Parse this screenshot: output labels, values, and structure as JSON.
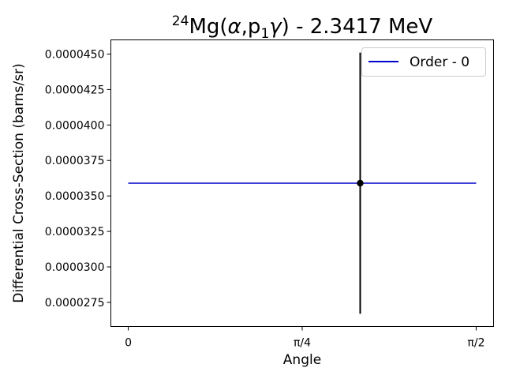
{
  "chart_data": {
    "type": "scatter",
    "title": {
      "mass_number": "24",
      "element": "Mg",
      "reaction_open": "(",
      "alpha": "α",
      "sep": ",p",
      "p_sub": "1",
      "gamma": "γ",
      "reaction_close": ")",
      "energy": " - 2.3417 MeV"
    },
    "xlabel": "Angle",
    "ylabel": "Differential Cross-Section (barns/sr)",
    "xlim": [
      -0.0785,
      1.6493
    ],
    "ylim": [
      2.58e-05,
      4.6e-05
    ],
    "x_ticks": [
      {
        "value": 0,
        "label": "0"
      },
      {
        "value": 0.785398,
        "label": "π/4"
      },
      {
        "value": 1.570796,
        "label": "π/2"
      }
    ],
    "y_ticks": [
      {
        "value": 2.75e-05,
        "label": "0.0000275"
      },
      {
        "value": 3e-05,
        "label": "0.0000300"
      },
      {
        "value": 3.25e-05,
        "label": "0.0000325"
      },
      {
        "value": 3.5e-05,
        "label": "0.0000350"
      },
      {
        "value": 3.75e-05,
        "label": "0.0000375"
      },
      {
        "value": 4e-05,
        "label": "0.0000400"
      },
      {
        "value": 4.25e-05,
        "label": "0.0000425"
      },
      {
        "value": 4.5e-05,
        "label": "0.0000450"
      }
    ],
    "series": [
      {
        "name": "Order - 0",
        "kind": "line",
        "color": "#0000cc",
        "x": [
          0,
          1.570796
        ],
        "y": [
          3.59e-05,
          3.59e-05
        ]
      }
    ],
    "points": [
      {
        "x": 1.0472,
        "y": 3.59e-05,
        "yerr_low": 2.67e-05,
        "yerr_high": 4.51e-05,
        "color": "#000000"
      }
    ],
    "legend": {
      "position": "top-right",
      "entries": [
        "Order - 0"
      ]
    },
    "grid": false
  }
}
